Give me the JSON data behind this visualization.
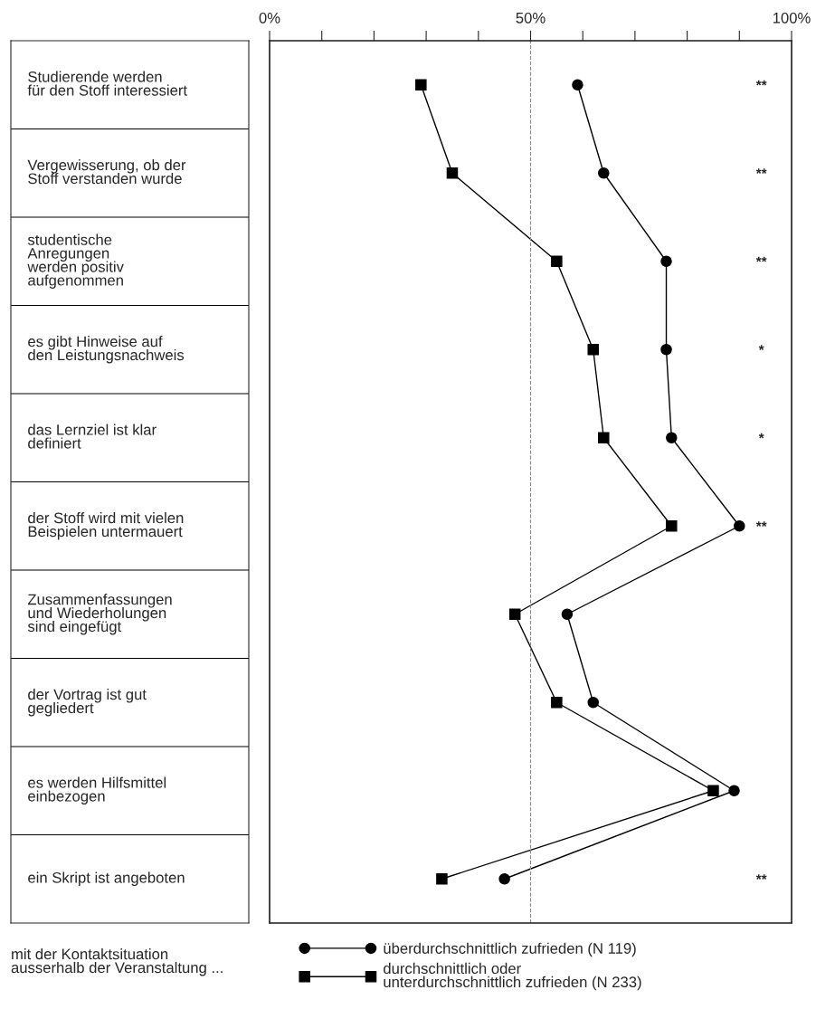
{
  "chart_data": {
    "type": "line",
    "orientation": "horizontal",
    "categories": [
      "Studierende werden\nfür den Stoff interessiert",
      "Vergewisserung, ob der\nStoff verstanden wurde",
      "studentische\nAnregungen\nwerden positiv\naufgenommen",
      "es gibt Hinweise auf\nden Leistungsnachweis",
      "das Lernziel ist klar\ndefiniert",
      "der Stoff wird mit vielen\nBeispielen untermauert",
      "Zusammenfassungen\nund Wiederholungen\nsind eingefügt",
      "der Vortrag ist gut\ngegliedert",
      "es werden Hilfsmittel\neinbezogen",
      "ein Skript ist angeboten"
    ],
    "series": [
      {
        "name": "überdurchschnittlich zufrieden (N 119)",
        "color": "#000000",
        "marker": "circle",
        "values": [
          59,
          64,
          76,
          76,
          77,
          90,
          57,
          62,
          89,
          45
        ]
      },
      {
        "name": "durchschnittlich oder\nunterdurchschnittlich zufrieden (N 233)",
        "color": "#000000",
        "marker": "square",
        "values": [
          29,
          35,
          55,
          62,
          64,
          77,
          47,
          55,
          85,
          33
        ]
      }
    ],
    "y2_categories": [
      "**",
      "**",
      "**",
      "*",
      "*",
      "**",
      null,
      null,
      null,
      "**"
    ],
    "xlim": [
      0,
      100
    ],
    "xticks": [
      {
        "value": 0,
        "label": "0%"
      },
      {
        "value": 10,
        "label": null
      },
      {
        "value": 20,
        "label": null
      },
      {
        "value": 30,
        "label": null
      },
      {
        "value": 40,
        "label": null
      },
      {
        "value": 50,
        "label": "50%"
      },
      {
        "value": 60,
        "label": null
      },
      {
        "value": 70,
        "label": null
      },
      {
        "value": 80,
        "label": null
      },
      {
        "value": 90,
        "label": null
      },
      {
        "value": 100,
        "label": "100%"
      }
    ],
    "ref_lines": [
      {
        "axis": "x",
        "value": 50,
        "color": "#888888",
        "line_style": "dashed"
      }
    ],
    "legend_title": "mit der Kontaktsituation\nausserhalb der Veranstaltung ...",
    "legend": "bottom",
    "grid": false
  }
}
